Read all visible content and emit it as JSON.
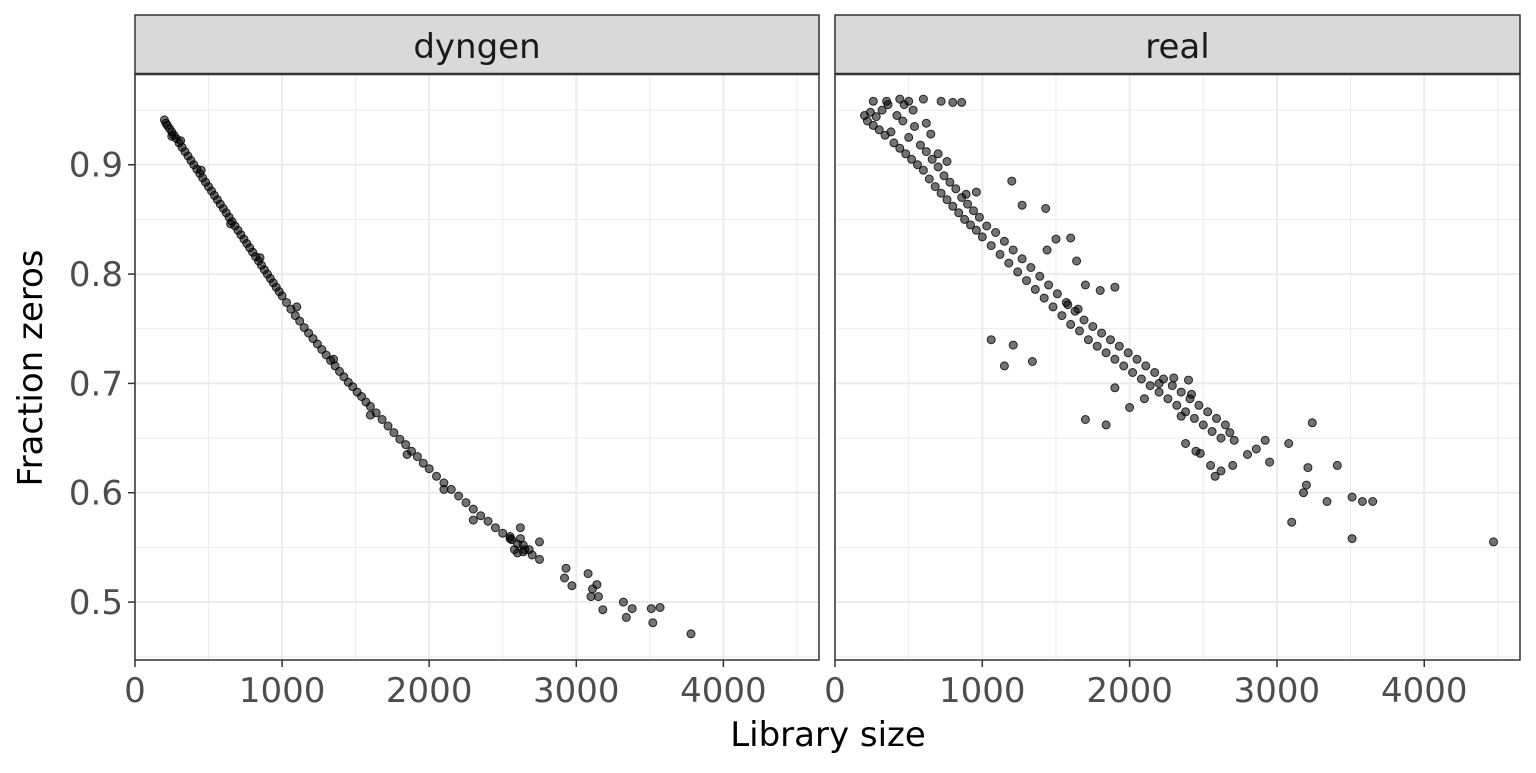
{
  "chart_data": {
    "type": "scatter",
    "xlabel": "Library size",
    "ylabel": "Fraction zeros",
    "xlim": [
      0,
      4650
    ],
    "ylim": [
      0.447,
      0.983
    ],
    "x_ticks": [
      0,
      1000,
      2000,
      3000,
      4000
    ],
    "x_tick_labels": [
      "0",
      "1000",
      "2000",
      "3000",
      "4000"
    ],
    "y_ticks": [
      0.5,
      0.6,
      0.7,
      0.8,
      0.9
    ],
    "y_tick_labels": [
      "0.5",
      "0.6",
      "0.7",
      "0.8",
      "0.9"
    ],
    "grid": true,
    "point_color": "#000000",
    "point_opacity": 0.55,
    "panel_border_color": "#333333",
    "strip_fill": "#d9d9d9",
    "grid_major_color": "#ebebeb",
    "panels": [
      {
        "strip": "dyngen",
        "points": [
          [
            200,
            0.941
          ],
          [
            210,
            0.938
          ],
          [
            220,
            0.936
          ],
          [
            235,
            0.933
          ],
          [
            250,
            0.93
          ],
          [
            265,
            0.927
          ],
          [
            280,
            0.924
          ],
          [
            300,
            0.92
          ],
          [
            320,
            0.916
          ],
          [
            340,
            0.912
          ],
          [
            360,
            0.908
          ],
          [
            380,
            0.904
          ],
          [
            400,
            0.9
          ],
          [
            420,
            0.896
          ],
          [
            440,
            0.892
          ],
          [
            460,
            0.888
          ],
          [
            480,
            0.884
          ],
          [
            500,
            0.88
          ],
          [
            520,
            0.876
          ],
          [
            540,
            0.872
          ],
          [
            560,
            0.868
          ],
          [
            580,
            0.864
          ],
          [
            600,
            0.86
          ],
          [
            620,
            0.856
          ],
          [
            640,
            0.852
          ],
          [
            660,
            0.848
          ],
          [
            680,
            0.844
          ],
          [
            700,
            0.84
          ],
          [
            720,
            0.836
          ],
          [
            740,
            0.832
          ],
          [
            760,
            0.828
          ],
          [
            780,
            0.824
          ],
          [
            800,
            0.82
          ],
          [
            820,
            0.816
          ],
          [
            840,
            0.812
          ],
          [
            860,
            0.808
          ],
          [
            880,
            0.804
          ],
          [
            900,
            0.8
          ],
          [
            920,
            0.796
          ],
          [
            940,
            0.792
          ],
          [
            960,
            0.788
          ],
          [
            980,
            0.784
          ],
          [
            1000,
            0.78
          ],
          [
            1030,
            0.774
          ],
          [
            1060,
            0.768
          ],
          [
            1090,
            0.762
          ],
          [
            1120,
            0.757
          ],
          [
            1150,
            0.751
          ],
          [
            1180,
            0.746
          ],
          [
            1210,
            0.741
          ],
          [
            1240,
            0.736
          ],
          [
            1270,
            0.731
          ],
          [
            1300,
            0.726
          ],
          [
            1330,
            0.721
          ],
          [
            1360,
            0.716
          ],
          [
            1390,
            0.711
          ],
          [
            1420,
            0.706
          ],
          [
            1450,
            0.701
          ],
          [
            1480,
            0.697
          ],
          [
            1510,
            0.692
          ],
          [
            1540,
            0.688
          ],
          [
            1570,
            0.683
          ],
          [
            1600,
            0.679
          ],
          [
            1640,
            0.673
          ],
          [
            1680,
            0.667
          ],
          [
            1720,
            0.661
          ],
          [
            1760,
            0.655
          ],
          [
            1800,
            0.649
          ],
          [
            1840,
            0.644
          ],
          [
            1880,
            0.638
          ],
          [
            1920,
            0.633
          ],
          [
            1960,
            0.627
          ],
          [
            2000,
            0.622
          ],
          [
            2050,
            0.615
          ],
          [
            2100,
            0.609
          ],
          [
            2150,
            0.603
          ],
          [
            2200,
            0.597
          ],
          [
            2250,
            0.591
          ],
          [
            2300,
            0.585
          ],
          [
            2350,
            0.579
          ],
          [
            2400,
            0.574
          ],
          [
            2450,
            0.568
          ],
          [
            2500,
            0.563
          ],
          [
            2550,
            0.558
          ],
          [
            2600,
            0.553
          ],
          [
            2650,
            0.548
          ],
          [
            2700,
            0.543
          ],
          [
            2750,
            0.539
          ],
          [
            250,
            0.926
          ],
          [
            310,
            0.922
          ],
          [
            450,
            0.895
          ],
          [
            650,
            0.846
          ],
          [
            850,
            0.815
          ],
          [
            1100,
            0.77
          ],
          [
            1350,
            0.722
          ],
          [
            1600,
            0.671
          ],
          [
            1850,
            0.635
          ],
          [
            2100,
            0.603
          ],
          [
            2300,
            0.575
          ],
          [
            2550,
            0.56
          ],
          [
            2620,
            0.568
          ],
          [
            2580,
            0.548
          ],
          [
            2640,
            0.552
          ],
          [
            2750,
            0.555
          ],
          [
            2600,
            0.545
          ],
          [
            2680,
            0.548
          ],
          [
            2560,
            0.557
          ],
          [
            2620,
            0.558
          ],
          [
            2640,
            0.546
          ],
          [
            2930,
            0.531
          ],
          [
            2920,
            0.522
          ],
          [
            2970,
            0.515
          ],
          [
            3080,
            0.526
          ],
          [
            3100,
            0.505
          ],
          [
            3110,
            0.512
          ],
          [
            3140,
            0.516
          ],
          [
            3150,
            0.505
          ],
          [
            3180,
            0.493
          ],
          [
            3320,
            0.5
          ],
          [
            3340,
            0.486
          ],
          [
            3380,
            0.494
          ],
          [
            3510,
            0.494
          ],
          [
            3520,
            0.481
          ],
          [
            3570,
            0.495
          ],
          [
            3780,
            0.471
          ]
        ]
      },
      {
        "strip": "real",
        "points": [
          [
            200,
            0.945
          ],
          [
            220,
            0.94
          ],
          [
            240,
            0.948
          ],
          [
            260,
            0.936
          ],
          [
            280,
            0.944
          ],
          [
            300,
            0.932
          ],
          [
            320,
            0.95
          ],
          [
            340,
            0.927
          ],
          [
            360,
            0.955
          ],
          [
            380,
            0.93
          ],
          [
            400,
            0.92
          ],
          [
            420,
            0.945
          ],
          [
            440,
            0.915
          ],
          [
            460,
            0.94
          ],
          [
            480,
            0.91
          ],
          [
            500,
            0.925
          ],
          [
            520,
            0.905
          ],
          [
            540,
            0.935
          ],
          [
            560,
            0.9
          ],
          [
            580,
            0.918
          ],
          [
            600,
            0.895
          ],
          [
            620,
            0.912
          ],
          [
            640,
            0.887
          ],
          [
            660,
            0.905
          ],
          [
            680,
            0.88
          ],
          [
            700,
            0.898
          ],
          [
            720,
            0.874
          ],
          [
            740,
            0.89
          ],
          [
            760,
            0.868
          ],
          [
            780,
            0.884
          ],
          [
            800,
            0.862
          ],
          [
            820,
            0.878
          ],
          [
            840,
            0.856
          ],
          [
            860,
            0.87
          ],
          [
            880,
            0.85
          ],
          [
            900,
            0.864
          ],
          [
            920,
            0.845
          ],
          [
            940,
            0.858
          ],
          [
            960,
            0.84
          ],
          [
            980,
            0.852
          ],
          [
            1000,
            0.834
          ],
          [
            1030,
            0.844
          ],
          [
            1060,
            0.826
          ],
          [
            1090,
            0.838
          ],
          [
            1120,
            0.818
          ],
          [
            1150,
            0.83
          ],
          [
            1180,
            0.81
          ],
          [
            1210,
            0.822
          ],
          [
            1240,
            0.802
          ],
          [
            1270,
            0.814
          ],
          [
            1300,
            0.794
          ],
          [
            1330,
            0.806
          ],
          [
            1360,
            0.786
          ],
          [
            1390,
            0.798
          ],
          [
            1420,
            0.778
          ],
          [
            1450,
            0.79
          ],
          [
            1480,
            0.77
          ],
          [
            1510,
            0.782
          ],
          [
            1540,
            0.762
          ],
          [
            1570,
            0.774
          ],
          [
            1600,
            0.754
          ],
          [
            1630,
            0.766
          ],
          [
            1660,
            0.748
          ],
          [
            1690,
            0.758
          ],
          [
            1720,
            0.74
          ],
          [
            1750,
            0.752
          ],
          [
            1780,
            0.734
          ],
          [
            1810,
            0.746
          ],
          [
            1840,
            0.728
          ],
          [
            1870,
            0.74
          ],
          [
            1900,
            0.722
          ],
          [
            1930,
            0.734
          ],
          [
            1960,
            0.716
          ],
          [
            1990,
            0.728
          ],
          [
            2020,
            0.71
          ],
          [
            2050,
            0.722
          ],
          [
            2080,
            0.704
          ],
          [
            2110,
            0.716
          ],
          [
            2140,
            0.698
          ],
          [
            2170,
            0.71
          ],
          [
            2200,
            0.692
          ],
          [
            2230,
            0.704
          ],
          [
            2260,
            0.686
          ],
          [
            2290,
            0.698
          ],
          [
            2320,
            0.68
          ],
          [
            2350,
            0.692
          ],
          [
            2380,
            0.674
          ],
          [
            2410,
            0.686
          ],
          [
            2440,
            0.668
          ],
          [
            2470,
            0.68
          ],
          [
            2500,
            0.662
          ],
          [
            2530,
            0.674
          ],
          [
            2560,
            0.656
          ],
          [
            2590,
            0.668
          ],
          [
            2620,
            0.65
          ],
          [
            2650,
            0.662
          ],
          [
            2680,
            0.655
          ],
          [
            2710,
            0.648
          ],
          [
            260,
            0.958
          ],
          [
            350,
            0.958
          ],
          [
            440,
            0.96
          ],
          [
            500,
            0.958
          ],
          [
            600,
            0.96
          ],
          [
            720,
            0.958
          ],
          [
            800,
            0.957
          ],
          [
            860,
            0.957
          ],
          [
            470,
            0.955
          ],
          [
            530,
            0.95
          ],
          [
            620,
            0.938
          ],
          [
            650,
            0.928
          ],
          [
            700,
            0.91
          ],
          [
            760,
            0.903
          ],
          [
            890,
            0.873
          ],
          [
            960,
            0.875
          ],
          [
            1200,
            0.885
          ],
          [
            1270,
            0.863
          ],
          [
            1430,
            0.86
          ],
          [
            1600,
            0.833
          ],
          [
            1640,
            0.812
          ],
          [
            1440,
            0.822
          ],
          [
            1500,
            0.832
          ],
          [
            1700,
            0.79
          ],
          [
            1800,
            0.785
          ],
          [
            1900,
            0.788
          ],
          [
            1580,
            0.772
          ],
          [
            1650,
            0.768
          ],
          [
            1060,
            0.74
          ],
          [
            1210,
            0.735
          ],
          [
            1340,
            0.72
          ],
          [
            1150,
            0.716
          ],
          [
            1700,
            0.667
          ],
          [
            1840,
            0.662
          ],
          [
            2000,
            0.678
          ],
          [
            2100,
            0.686
          ],
          [
            1900,
            0.696
          ],
          [
            2200,
            0.7
          ],
          [
            2300,
            0.705
          ],
          [
            2400,
            0.703
          ],
          [
            2420,
            0.69
          ],
          [
            2350,
            0.67
          ],
          [
            2380,
            0.645
          ],
          [
            2450,
            0.638
          ],
          [
            2480,
            0.636
          ],
          [
            2550,
            0.625
          ],
          [
            2580,
            0.615
          ],
          [
            2620,
            0.62
          ],
          [
            2700,
            0.625
          ],
          [
            2800,
            0.635
          ],
          [
            2860,
            0.64
          ],
          [
            2920,
            0.648
          ],
          [
            2950,
            0.628
          ],
          [
            3080,
            0.645
          ],
          [
            3100,
            0.573
          ],
          [
            3180,
            0.6
          ],
          [
            3200,
            0.607
          ],
          [
            3210,
            0.623
          ],
          [
            3240,
            0.664
          ],
          [
            3340,
            0.592
          ],
          [
            3410,
            0.625
          ],
          [
            3510,
            0.596
          ],
          [
            3510,
            0.558
          ],
          [
            3580,
            0.592
          ],
          [
            3650,
            0.592
          ],
          [
            4470,
            0.555
          ]
        ]
      }
    ]
  }
}
